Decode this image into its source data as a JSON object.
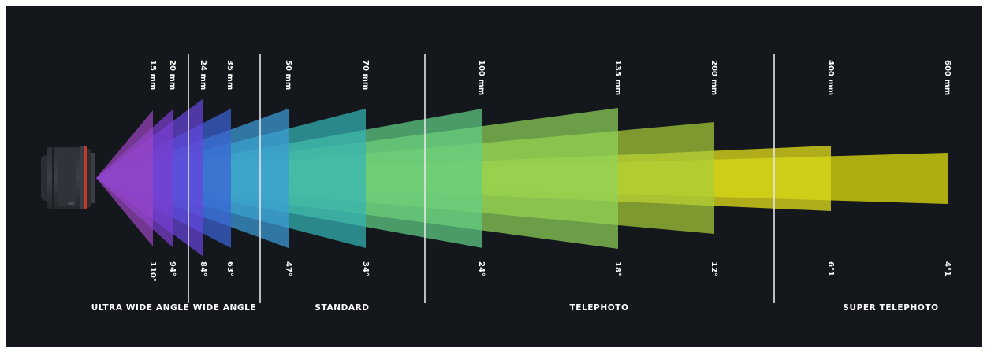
{
  "lenses": [
    {
      "focal": "15 mm",
      "angle": "110°",
      "color": "#9b46c4"
    },
    {
      "focal": "20 mm",
      "angle": "94°",
      "color": "#7a3fd0"
    },
    {
      "focal": "24 mm",
      "angle": "84°",
      "color": "#6644dd"
    },
    {
      "focal": "35 mm",
      "angle": "63°",
      "color": "#3a63d6"
    },
    {
      "focal": "50 mm",
      "angle": "47°",
      "color": "#3b9cd8"
    },
    {
      "focal": "70 mm",
      "angle": "34°",
      "color": "#34b4b6"
    },
    {
      "focal": "100 mm",
      "angle": "24°",
      "color": "#5fcf86"
    },
    {
      "focal": "135 mm",
      "angle": "18°",
      "color": "#8fd25a"
    },
    {
      "focal": "200 mm",
      "angle": "12°",
      "color": "#a9cc3a"
    },
    {
      "focal": "400 mm",
      "angle": "6°1",
      "color": "#d6d51a"
    },
    {
      "focal": "600 mm",
      "angle": "4°1",
      "color": "#c8c810"
    }
  ],
  "categories": [
    {
      "label": "ULTRA WIDE ANGLE"
    },
    {
      "label": "WIDE ANGLE"
    },
    {
      "label": "STANDARD"
    },
    {
      "label": "TELEPHOTO"
    },
    {
      "label": "SUPER TELEPHOTO"
    }
  ],
  "colors": {
    "background": "#14171c",
    "text": "#ffffff",
    "divider": "#e6e6e6"
  }
}
